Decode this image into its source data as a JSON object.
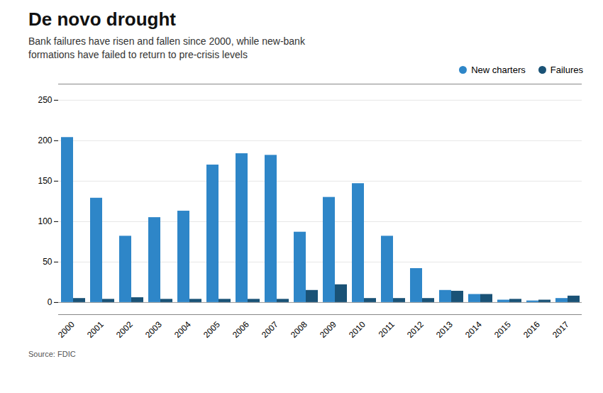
{
  "chart_data": {
    "type": "bar",
    "title": "De novo drought",
    "subtitle": "Bank failures have risen and fallen since 2000, while new-bank\nformations have failed to return to pre-crisis levels",
    "source": "Source: FDIC",
    "categories": [
      "2000",
      "2001",
      "2002",
      "2003",
      "2004",
      "2005",
      "2006",
      "2007",
      "2008",
      "2009",
      "2010",
      "2011",
      "2012",
      "2013",
      "2014",
      "2015",
      "2016",
      "2017"
    ],
    "series": [
      {
        "name": "New charters",
        "color": "#2e86c8",
        "values": [
          204,
          129,
          82,
          105,
          113,
          170,
          184,
          182,
          87,
          130,
          147,
          82,
          42,
          15,
          10,
          3,
          2,
          5
        ]
      },
      {
        "name": "Failures",
        "color": "#1a5276",
        "values": [
          5,
          4,
          6,
          4,
          4,
          4,
          4,
          4,
          15,
          22,
          5,
          5,
          5,
          14,
          10,
          4,
          3,
          8
        ]
      }
    ],
    "ylim": [
      -15,
      270
    ],
    "yticks": [
      0,
      50,
      100,
      150,
      200,
      250
    ],
    "grid": true
  }
}
